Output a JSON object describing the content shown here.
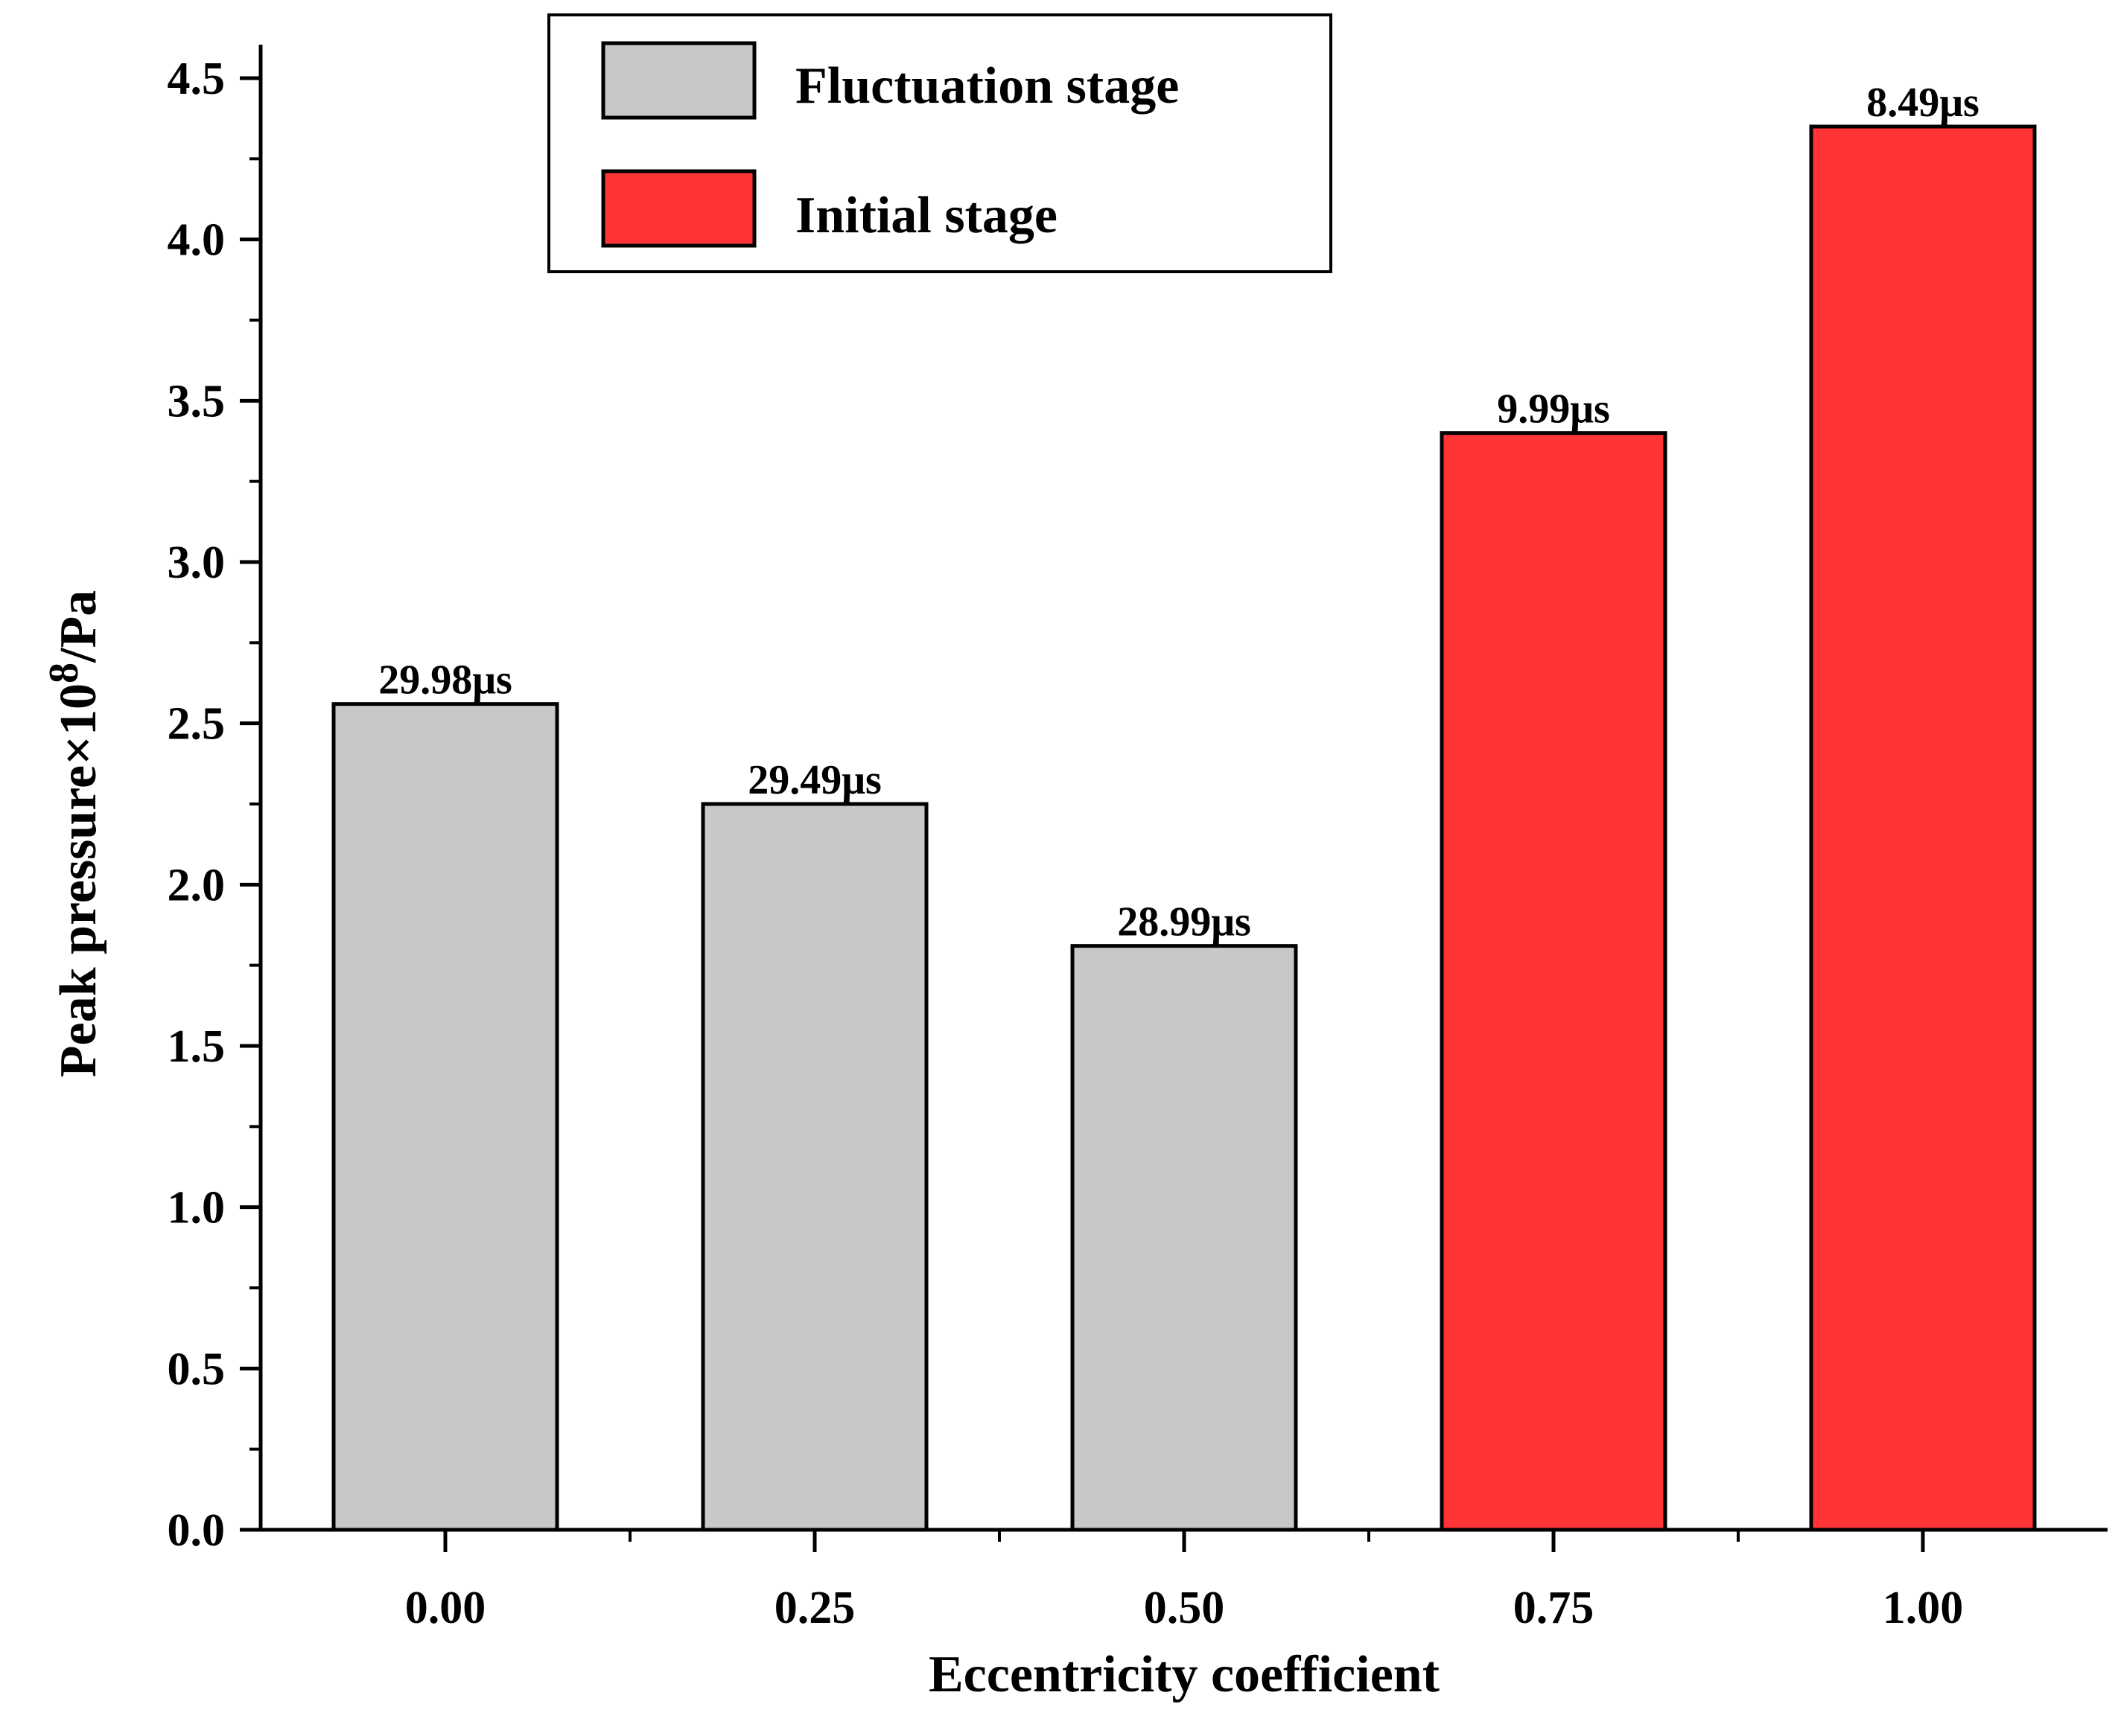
{
  "chart_data": {
    "type": "bar",
    "title": "",
    "xlabel": "Eccentricity coefficient",
    "ylabel_main": "Peak pressure×10",
    "ylabel_exp": "8",
    "ylabel_unit": "/Pa",
    "ylim": [
      0,
      4.5
    ],
    "yticks": [
      "0.0",
      "0.5",
      "1.0",
      "1.5",
      "2.0",
      "2.5",
      "3.0",
      "3.5",
      "4.0",
      "4.5"
    ],
    "ytick_values": [
      0,
      0.5,
      1.0,
      1.5,
      2.0,
      2.5,
      3.0,
      3.5,
      4.0,
      4.5
    ],
    "categories": [
      "0.00",
      "0.25",
      "0.50",
      "0.75",
      "1.00"
    ],
    "values": [
      2.56,
      2.25,
      1.81,
      3.4,
      4.35
    ],
    "bar_labels": [
      "29.98μs",
      "29.49μs",
      "28.99μs",
      "9.99μs",
      "8.49μs"
    ],
    "bar_series": [
      "Fluctuation stage",
      "Fluctuation stage",
      "Fluctuation stage",
      "Initial stage",
      "Initial stage"
    ],
    "legend": {
      "position": "top-center",
      "entries": [
        {
          "name": "Fluctuation stage",
          "color": "#c8c8c8"
        },
        {
          "name": "Initial stage",
          "color": "#fe3437"
        }
      ]
    },
    "colors": {
      "Fluctuation stage": "#c8c8c8",
      "Initial stage": "#fe3437"
    }
  }
}
